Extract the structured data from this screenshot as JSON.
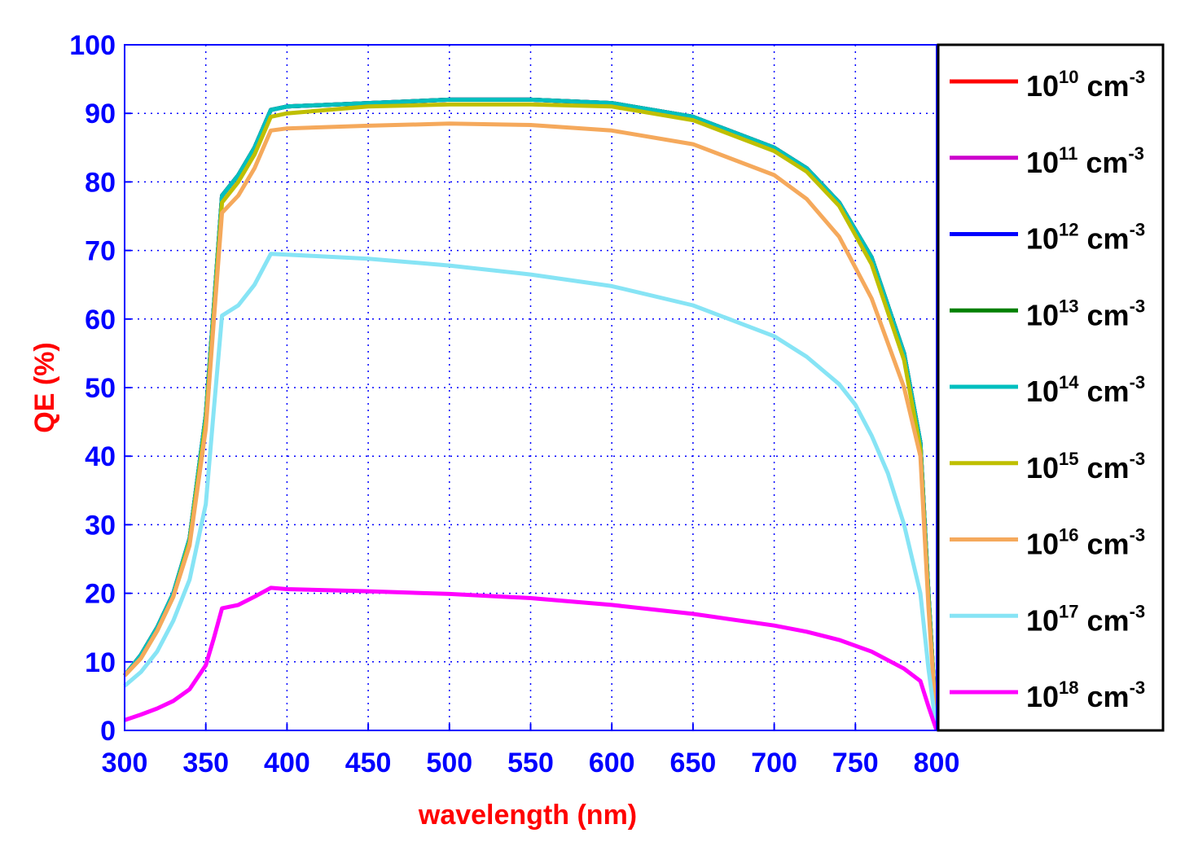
{
  "chart_data": {
    "type": "line",
    "xlabel": "wavelength (nm)",
    "ylabel": "QE (%)",
    "xlim": [
      300,
      800
    ],
    "ylim": [
      0,
      100
    ],
    "xticks": [
      300,
      350,
      400,
      450,
      500,
      550,
      600,
      650,
      700,
      750,
      800
    ],
    "yticks": [
      0,
      10,
      20,
      30,
      40,
      50,
      60,
      70,
      80,
      90,
      100
    ],
    "grid": true,
    "legend_position": "right",
    "series": [
      {
        "name_base": "10",
        "name_exp": "10",
        "name_unit": "cm",
        "name_unit_exp": "-3",
        "color": "#ff0000",
        "x": [
          300,
          310,
          320,
          330,
          340,
          350,
          355,
          360,
          370,
          380,
          390,
          400,
          450,
          500,
          550,
          600,
          650,
          700,
          720,
          740,
          760,
          780,
          790,
          795,
          800
        ],
        "y": [
          8,
          11,
          15,
          20,
          28,
          46,
          62,
          78,
          81,
          85,
          90.5,
          91,
          91.5,
          92,
          92,
          91.5,
          89.5,
          85,
          82,
          77,
          69,
          55,
          42,
          20,
          0
        ]
      },
      {
        "name_base": "10",
        "name_exp": "11",
        "name_unit": "cm",
        "name_unit_exp": "-3",
        "color": "#cc00cc",
        "x": [
          300,
          310,
          320,
          330,
          340,
          350,
          355,
          360,
          370,
          380,
          390,
          400,
          450,
          500,
          550,
          600,
          650,
          700,
          720,
          740,
          760,
          780,
          790,
          795,
          800
        ],
        "y": [
          8,
          11,
          15,
          20,
          28,
          46,
          62,
          78,
          81,
          85,
          90.5,
          91,
          91.5,
          92,
          92,
          91.5,
          89.5,
          85,
          82,
          77,
          69,
          55,
          42,
          20,
          0
        ]
      },
      {
        "name_base": "10",
        "name_exp": "12",
        "name_unit": "cm",
        "name_unit_exp": "-3",
        "color": "#0000ff",
        "x": [
          300,
          310,
          320,
          330,
          340,
          350,
          355,
          360,
          370,
          380,
          390,
          400,
          450,
          500,
          550,
          600,
          650,
          700,
          720,
          740,
          760,
          780,
          790,
          795,
          800
        ],
        "y": [
          8,
          11,
          15,
          20,
          28,
          46,
          62,
          78,
          81,
          85,
          90.5,
          91,
          91.5,
          92,
          92,
          91.5,
          89.5,
          85,
          82,
          77,
          69,
          55,
          42,
          20,
          0
        ]
      },
      {
        "name_base": "10",
        "name_exp": "13",
        "name_unit": "cm",
        "name_unit_exp": "-3",
        "color": "#008000",
        "x": [
          300,
          310,
          320,
          330,
          340,
          350,
          355,
          360,
          370,
          380,
          390,
          400,
          450,
          500,
          550,
          600,
          650,
          700,
          720,
          740,
          760,
          780,
          790,
          795,
          800
        ],
        "y": [
          8,
          11,
          15,
          20,
          28,
          46,
          62,
          78,
          81,
          85,
          90.5,
          91,
          91.5,
          92,
          92,
          91.5,
          89.5,
          85,
          82,
          77,
          69,
          55,
          42,
          20,
          0
        ]
      },
      {
        "name_base": "10",
        "name_exp": "14",
        "name_unit": "cm",
        "name_unit_exp": "-3",
        "color": "#00bfbf",
        "x": [
          300,
          310,
          320,
          330,
          340,
          350,
          355,
          360,
          370,
          380,
          390,
          400,
          450,
          500,
          550,
          600,
          650,
          700,
          720,
          740,
          760,
          780,
          790,
          795,
          800
        ],
        "y": [
          8,
          11,
          15,
          20,
          28,
          46,
          62,
          78,
          81,
          85,
          90.5,
          91,
          91.5,
          92,
          92,
          91.5,
          89.5,
          85,
          82,
          77,
          69,
          55,
          42,
          20,
          0
        ]
      },
      {
        "name_base": "10",
        "name_exp": "15",
        "name_unit": "cm",
        "name_unit_exp": "-3",
        "color": "#bfbf00",
        "x": [
          300,
          310,
          320,
          330,
          340,
          350,
          355,
          360,
          370,
          380,
          390,
          400,
          450,
          500,
          550,
          600,
          650,
          700,
          720,
          740,
          760,
          780,
          790,
          795,
          800
        ],
        "y": [
          8,
          10.5,
          14.5,
          19.5,
          27.5,
          45,
          61,
          77,
          80,
          84,
          89.5,
          90,
          91,
          91.3,
          91.3,
          91,
          89,
          84.5,
          81.5,
          76.5,
          68,
          54,
          41,
          19,
          0
        ]
      },
      {
        "name_base": "10",
        "name_exp": "16",
        "name_unit": "cm",
        "name_unit_exp": "-3",
        "color": "#f5a95c",
        "x": [
          300,
          310,
          320,
          330,
          340,
          350,
          355,
          360,
          370,
          380,
          390,
          400,
          450,
          500,
          550,
          600,
          650,
          700,
          720,
          740,
          760,
          780,
          790,
          795,
          800
        ],
        "y": [
          8,
          10.5,
          14.5,
          19.5,
          27,
          44,
          60,
          75.5,
          78,
          82,
          87.5,
          87.8,
          88.2,
          88.5,
          88.3,
          87.5,
          85.5,
          81,
          77.5,
          72,
          63,
          50,
          40,
          18,
          0
        ]
      },
      {
        "name_base": "10",
        "name_exp": "17",
        "name_unit": "cm",
        "name_unit_exp": "-3",
        "color": "#87e4f5",
        "x": [
          300,
          310,
          320,
          330,
          340,
          350,
          355,
          360,
          370,
          380,
          390,
          400,
          450,
          500,
          550,
          600,
          650,
          700,
          720,
          740,
          750,
          760,
          770,
          780,
          790,
          795,
          800
        ],
        "y": [
          6.5,
          8.5,
          11.5,
          16,
          22,
          33,
          47,
          60.5,
          62,
          65,
          69.5,
          69.4,
          68.8,
          67.8,
          66.5,
          64.8,
          62,
          57.5,
          54.5,
          50.5,
          47.5,
          43,
          37.5,
          30,
          20,
          9,
          0
        ]
      },
      {
        "name_base": "10",
        "name_exp": "18",
        "name_unit": "cm",
        "name_unit_exp": "-3",
        "color": "#ff00ff",
        "x": [
          300,
          310,
          320,
          330,
          340,
          350,
          355,
          360,
          370,
          380,
          390,
          400,
          450,
          500,
          550,
          600,
          650,
          700,
          720,
          740,
          760,
          780,
          790,
          795,
          800
        ],
        "y": [
          1.5,
          2.3,
          3.2,
          4.3,
          6,
          9.5,
          13.5,
          17.8,
          18.3,
          19.5,
          20.8,
          20.6,
          20.3,
          19.9,
          19.3,
          18.3,
          17,
          15.3,
          14.4,
          13.2,
          11.5,
          9,
          7.2,
          3.5,
          0
        ]
      }
    ]
  }
}
